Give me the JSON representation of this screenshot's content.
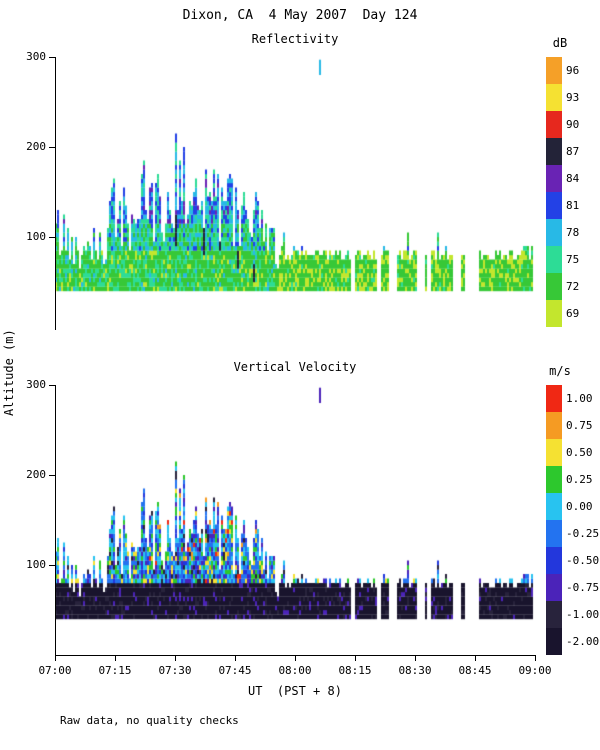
{
  "page": {
    "title": "Dixon, CA  4 May 2007  Day 124",
    "footer_note": "Raw data, no quality checks",
    "ylabel": "Altitude (m)",
    "xlabel": "UT  (PST + 8)"
  },
  "axes": {
    "x_tick_labels": [
      "07:00",
      "07:15",
      "07:30",
      "07:45",
      "08:00",
      "08:15",
      "08:30",
      "08:45",
      "09:00"
    ],
    "y_tick_labels": [
      "300",
      "200",
      "100"
    ],
    "y_tick_values": [
      300,
      200,
      100
    ],
    "ylim": [
      0,
      300
    ],
    "x_minutes_range": [
      0,
      120
    ]
  },
  "chart_data": [
    {
      "type": "heatmap",
      "panel": "reflectivity",
      "title": "Reflectivity",
      "xlabel": "UT  (PST + 8)",
      "ylabel": "Altitude (m)",
      "ylim": [
        0,
        300
      ],
      "time_range_ut": [
        "07:00",
        "09:00"
      ],
      "base_altitude_m": 40,
      "colorbar": {
        "unit": "dB",
        "labels_top_to_bottom": [
          "96",
          "93",
          "90",
          "87",
          "84",
          "81",
          "78",
          "75",
          "72",
          "69"
        ],
        "values_top_to_bottom": [
          96,
          93,
          90,
          87,
          84,
          81,
          78,
          75,
          72,
          69
        ],
        "colors_top_to_bottom": [
          "#f5a028",
          "#f5e132",
          "#e6281e",
          "#232338",
          "#6923b4",
          "#2341e6",
          "#28b9e6",
          "#2ddc96",
          "#37c837",
          "#c3e62d"
        ]
      },
      "echo_top_envelope": {
        "minutes": [
          0,
          3,
          6,
          9,
          12,
          15,
          18,
          21,
          24,
          27,
          30,
          33,
          36,
          39,
          42,
          45,
          48,
          51,
          54,
          57,
          60,
          63,
          66,
          69,
          72,
          75,
          78,
          81,
          84,
          87,
          90,
          93,
          96,
          99,
          102,
          105,
          108,
          111,
          114,
          117,
          120
        ],
        "top_m": [
          140,
          120,
          95,
          140,
          105,
          175,
          145,
          180,
          175,
          160,
          220,
          185,
          210,
          190,
          165,
          175,
          160,
          140,
          120,
          100,
          110,
          80,
          95,
          80,
          80,
          95,
          80,
          80,
          80,
          110,
          85,
          80,
          100,
          95,
          80,
          100,
          85,
          80,
          95,
          80,
          85
        ]
      },
      "notes": "Dense low-level echo 40-80 m throughout; deep spikes to ~220 m between 07:05 and 07:55 UT; mostly uniform ~80 m tops after 08:00 UT with gaps; dominant values 69-78 dB, spike tops 78-84 dB, dark 87-90 dB streaks near 07:33-07:48",
      "isolated_echo": {
        "minute": 66,
        "alt_m": [
          280,
          297
        ],
        "value": 78
      }
    },
    {
      "type": "heatmap",
      "panel": "vertical_velocity",
      "title": "Vertical Velocity",
      "xlabel": "UT  (PST + 8)",
      "ylabel": "Altitude (m)",
      "ylim": [
        0,
        300
      ],
      "time_range_ut": [
        "07:00",
        "09:00"
      ],
      "base_altitude_m": 40,
      "colorbar": {
        "unit": "m/s",
        "labels_top_to_bottom": [
          "1.00",
          "0.75",
          "0.50",
          "0.25",
          "0.00",
          "-0.25",
          "-0.50",
          "-0.75",
          "-1.00",
          "-2.00"
        ],
        "values_top_to_bottom": [
          1.0,
          0.75,
          0.5,
          0.25,
          0.0,
          -0.25,
          -0.5,
          -0.75,
          -1.0,
          -2.0
        ],
        "colors_top_to_bottom": [
          "#f02814",
          "#f59b23",
          "#f5e132",
          "#2dc82d",
          "#28c3f0",
          "#2373f0",
          "#2337dc",
          "#4b23b9",
          "#28233c",
          "#19142d"
        ]
      },
      "notes": "Bulk of low-level echo -1.0 to -2.0 m/s (very dark); spike regions mixed -0.75 to +0.25 m/s with scattered warm speckles 0.25 to 1.0 m/s between ~07:20 and 07:50 UT",
      "isolated_echo": {
        "minute": 66,
        "alt_m": [
          280,
          297
        ],
        "value": -0.75
      }
    }
  ]
}
